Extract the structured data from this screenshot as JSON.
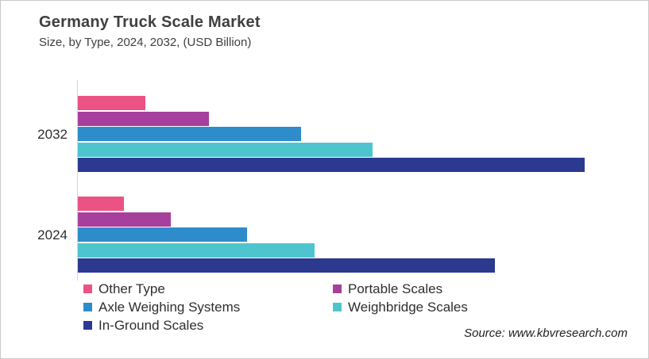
{
  "header": {
    "title": "Germany Truck Scale Market",
    "subtitle": "Size, by Type, 2024, 2032, (USD Billion)"
  },
  "footer": {
    "source": "Source: www.kbvresearch.com"
  },
  "colors": {
    "other_type": "#ec5385",
    "portable_scales": "#a73f9d",
    "axle_weighing_systems": "#2e8ccb",
    "weighbridge_scales": "#4ec5ce",
    "in_ground_scales": "#2b3a8f",
    "axis_line": "#d4d4d4",
    "canvas_border": "#c9c9c9",
    "text": "#3f3f3f"
  },
  "chart_data": {
    "type": "bar",
    "orientation": "horizontal",
    "title": "Germany Truck Scale Market",
    "subtitle": "Size, by Type, 2024, 2032, (USD Billion)",
    "unit": "USD Billion",
    "categories": [
      "2032",
      "2024"
    ],
    "series": [
      {
        "name": "Other Type",
        "color": "#ec5385",
        "values": [
          13.3,
          9.1
        ]
      },
      {
        "name": "Portable Scales",
        "color": "#a73f9d",
        "values": [
          25.9,
          18.3
        ]
      },
      {
        "name": "Axle Weighing Systems",
        "color": "#2e8ccb",
        "values": [
          44.0,
          33.4
        ]
      },
      {
        "name": "Weighbridge Scales",
        "color": "#4ec5ce",
        "values": [
          58.2,
          46.7
        ]
      },
      {
        "name": "In-Ground Scales",
        "color": "#2b3a8f",
        "values": [
          100.0,
          82.3
        ]
      }
    ],
    "value_axis": {
      "ticks_visible": false,
      "scale": "relative bar length, longest bar = 100"
    },
    "grid": false,
    "legend_position": "bottom-left"
  }
}
